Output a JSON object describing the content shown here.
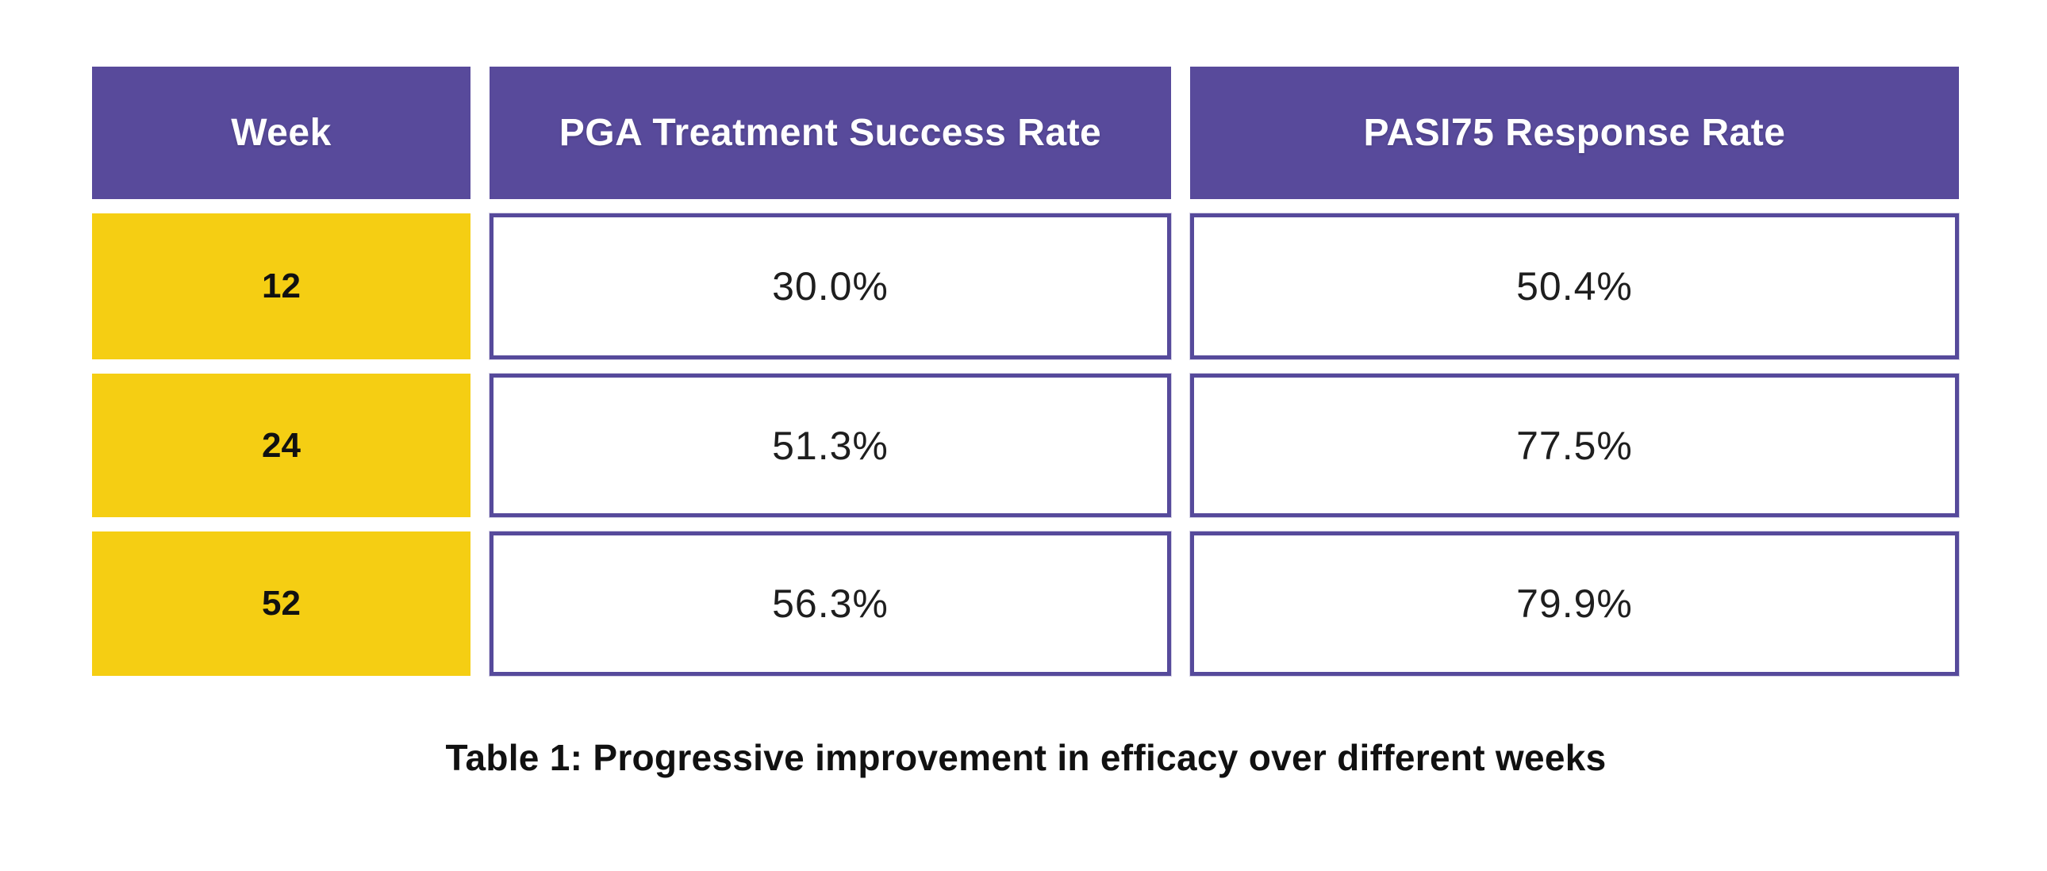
{
  "table": {
    "columns": {
      "week": "Week",
      "pga": "PGA Treatment Success Rate",
      "pasi": "PASI75 Response Rate"
    },
    "rows": [
      {
        "week": "12",
        "pga": "30.0%",
        "pasi": "50.4%"
      },
      {
        "week": "24",
        "pga": "51.3%",
        "pasi": "77.5%"
      },
      {
        "week": "52",
        "pga": "56.3%",
        "pasi": "79.9%"
      }
    ],
    "caption": "Table 1: Progressive improvement in efficacy over different weeks"
  },
  "colors": {
    "header_bg": "#584a9b",
    "header_text": "#ffffff",
    "week_bg": "#f5ce13",
    "week_text": "#111111",
    "cell_border": "#564a9b",
    "value_text": "#1e1e1e",
    "caption_text": "#111111"
  },
  "chart_data": {
    "type": "table",
    "title": "Table 1: Progressive improvement in efficacy over different weeks",
    "columns": [
      "Week",
      "PGA Treatment Success Rate",
      "PASI75 Response Rate"
    ],
    "rows": [
      [
        "12",
        "30.0%",
        "50.4%"
      ],
      [
        "24",
        "51.3%",
        "77.5%"
      ],
      [
        "52",
        "56.3%",
        "79.9%"
      ]
    ],
    "categories": [
      "12",
      "24",
      "52"
    ],
    "xlabel": "Week",
    "series": [
      {
        "name": "PGA Treatment Success Rate",
        "values": [
          30.0,
          51.3,
          56.3
        ]
      },
      {
        "name": "PASI75 Response Rate",
        "values": [
          50.4,
          77.5,
          79.9
        ]
      }
    ]
  }
}
